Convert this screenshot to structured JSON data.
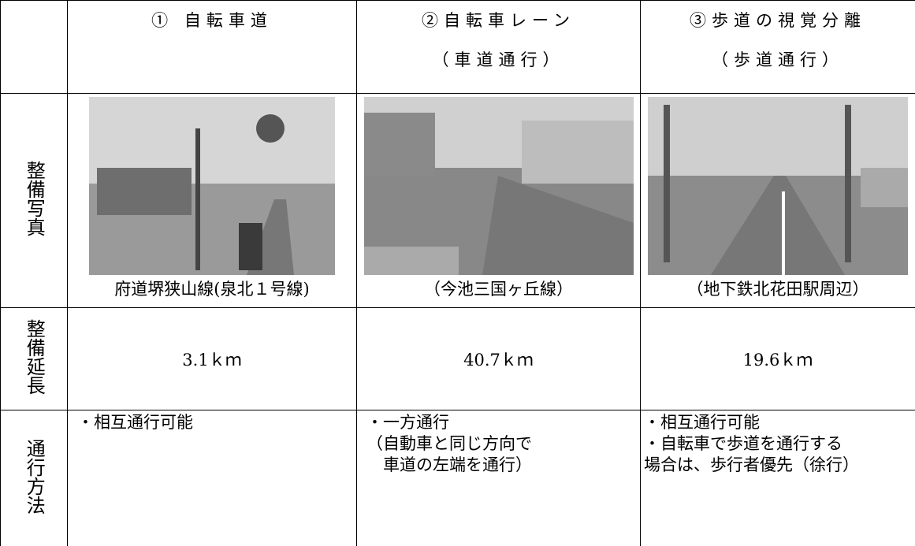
{
  "table": {
    "columns": [
      {
        "title": "① 自転車道"
      },
      {
        "title": "②自転車レーン",
        "subtitle": "（車道通行）"
      },
      {
        "title": "③歩道の視覚分離",
        "subtitle": "（歩道通行）"
      }
    ],
    "rows": [
      {
        "label": "整備写真",
        "cells": [
          "府道堺狭山線(泉北１号線)",
          "（今池三国ヶ丘線）",
          "（地下鉄北花田駅周辺）"
        ]
      },
      {
        "label": "整備延長",
        "cells": [
          "3.1ｋｍ",
          "40.7ｋｍ",
          "19.6ｋｍ"
        ]
      },
      {
        "label": "通行方法",
        "cells": [
          [
            "・相互通行可能"
          ],
          [
            "・一方通行",
            "（自動車と同じ方向で",
            "　車道の左端を通行）"
          ],
          [
            "・相互通行可能",
            "・自転車で歩道を通行する",
            "場合は、歩行者優先（徐行）"
          ]
        ]
      }
    ]
  }
}
